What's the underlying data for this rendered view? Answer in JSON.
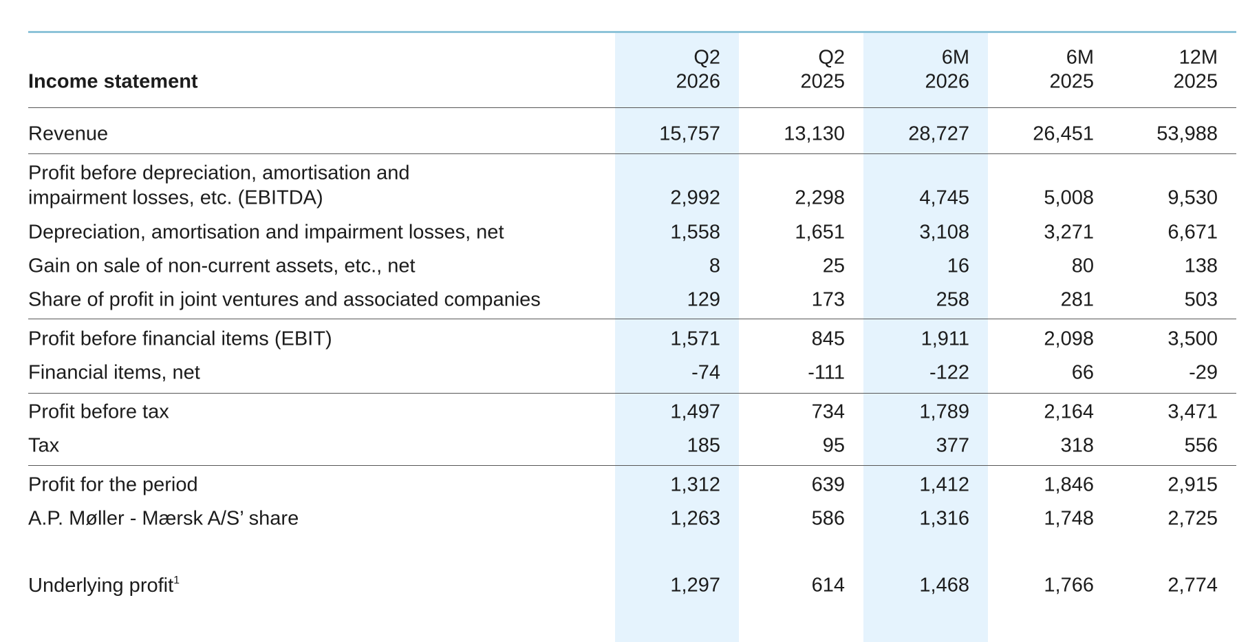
{
  "table": {
    "title": "Income statement",
    "columns": [
      {
        "line1": "Q2",
        "line2": "2026"
      },
      {
        "line1": "Q2",
        "line2": "2025"
      },
      {
        "line1": "6M",
        "line2": "2026"
      },
      {
        "line1": "6M",
        "line2": "2025"
      },
      {
        "line1": "12M",
        "line2": "2025"
      }
    ],
    "rows": [
      {
        "label": [
          "Revenue"
        ],
        "values": [
          "15,757",
          "13,130",
          "28,727",
          "26,451",
          "53,988"
        ]
      },
      {
        "label": [
          "Profit before depreciation, amortisation and",
          "impairment losses, etc. (EBITDA)"
        ],
        "values": [
          "2,992",
          "2,298",
          "4,745",
          "5,008",
          "9,530"
        ]
      },
      {
        "label": [
          "Depreciation, amortisation and impairment losses, net"
        ],
        "values": [
          "1,558",
          "1,651",
          "3,108",
          "3,271",
          "6,671"
        ]
      },
      {
        "label": [
          "Gain on sale of non-current assets, etc., net"
        ],
        "values": [
          "8",
          "25",
          "16",
          "80",
          "138"
        ]
      },
      {
        "label": [
          "Share of profit in joint ventures and associated companies"
        ],
        "values": [
          "129",
          "173",
          "258",
          "281",
          "503"
        ]
      },
      {
        "label": [
          "Profit before financial items (EBIT)"
        ],
        "values": [
          "1,571",
          "845",
          "1,911",
          "2,098",
          "3,500"
        ]
      },
      {
        "label": [
          "Financial items, net"
        ],
        "values": [
          "-74",
          "-111",
          "-122",
          "66",
          "-29"
        ]
      },
      {
        "label": [
          "Profit before tax"
        ],
        "values": [
          "1,497",
          "734",
          "1,789",
          "2,164",
          "3,471"
        ]
      },
      {
        "label": [
          "Tax"
        ],
        "values": [
          "185",
          "95",
          "377",
          "318",
          "556"
        ]
      },
      {
        "label": [
          "Profit for the period"
        ],
        "values": [
          "1,312",
          "639",
          "1,412",
          "1,846",
          "2,915"
        ]
      },
      {
        "label": [
          "A.P. Møller - Mærsk A/S’ share"
        ],
        "values": [
          "1,263",
          "586",
          "1,316",
          "1,748",
          "2,725"
        ]
      },
      {
        "label": [
          "Underlying profit"
        ],
        "footnote": "1",
        "values": [
          "1,297",
          "614",
          "1,468",
          "1,766",
          "2,774"
        ]
      }
    ]
  }
}
